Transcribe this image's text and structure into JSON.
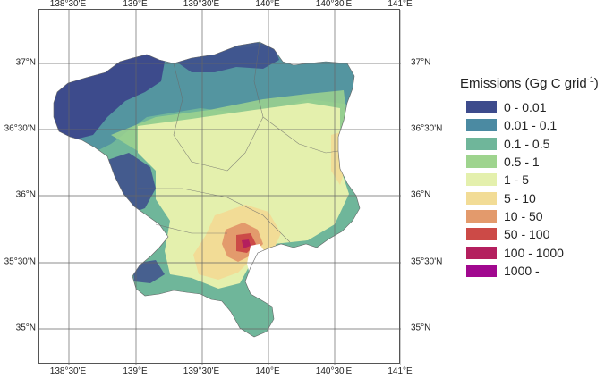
{
  "axes": {
    "top_labels": [
      "138°30'E",
      "139°E",
      "139°30'E",
      "140°E",
      "140°30'E",
      "141°E"
    ],
    "bottom_labels": [
      "138°30'E",
      "139°E",
      "139°30'E",
      "140°E",
      "140°30'E",
      "141°E"
    ],
    "left_labels": [
      "37°N",
      "36°30'N",
      "36°N",
      "35°30'N",
      "35°N"
    ],
    "right_labels": [
      "37°N",
      "36°30'N",
      "36°N",
      "35°30'N",
      "35°N"
    ]
  },
  "legend": {
    "title_main": "Emissions (Gg C grid",
    "title_sup": "-1",
    "title_end": ")",
    "items": [
      {
        "label": "0 - 0.01",
        "color": "#3d4b8c"
      },
      {
        "label": "0.01 - 0.1",
        "color": "#4b8aa2"
      },
      {
        "label": "0.1 - 0.5",
        "color": "#6fb69a"
      },
      {
        "label": "0.5 - 1",
        "color": "#9ed48e"
      },
      {
        "label": "1 - 5",
        "color": "#e4f0ad"
      },
      {
        "label": "5 - 10",
        "color": "#f2dc96"
      },
      {
        "label": "10 - 50",
        "color": "#e39a6c"
      },
      {
        "label": "50 - 100",
        "color": "#cc4a47"
      },
      {
        "label": "100 - 1000",
        "color": "#b41f5e"
      },
      {
        "label": "1000 -",
        "color": "#a1088f"
      }
    ]
  }
}
